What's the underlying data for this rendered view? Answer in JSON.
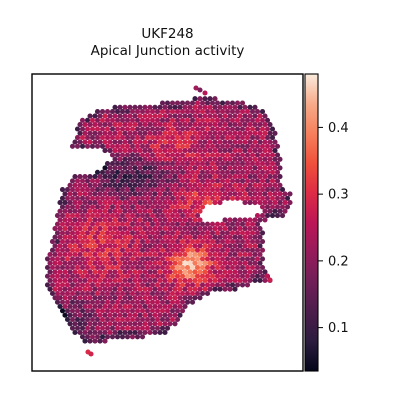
{
  "chart_data": {
    "type": "heatmap",
    "title_lines": [
      "UKF248",
      "Apical Junction activity"
    ],
    "xlabel": "",
    "ylabel": "",
    "colorbar": {
      "colormap": "rocket",
      "range": [
        0.035,
        0.48
      ],
      "ticks": [
        0.1,
        0.2,
        0.3,
        0.4
      ],
      "tick_labels": [
        "0.1",
        "0.2",
        "0.3",
        "0.4"
      ]
    },
    "spots": "hexagonal Visium spot grid covering the tissue section; activity values mostly 0.15-0.35, low values (~0.05-0.12) at the upper-left notch and outer rim, highest values (~0.45) in the lower-center hot spot near the central hole"
  }
}
